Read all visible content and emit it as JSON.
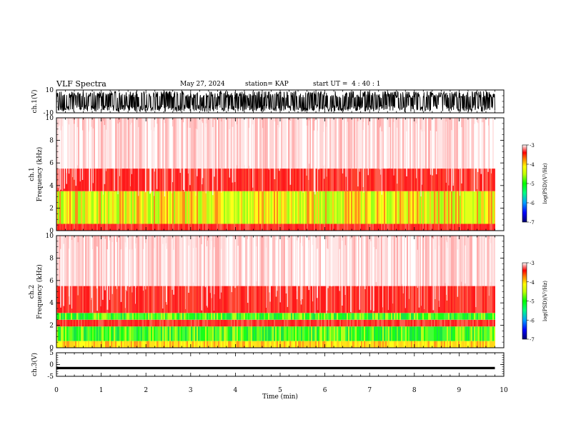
{
  "header": {
    "title": "VLF Spectra",
    "date": "May 27, 2024",
    "station": "station= KAP",
    "start": "start UT =  4 : 40 : 1"
  },
  "chart_data": [
    {
      "type": "line",
      "panel": "ch1-waveform",
      "ylabel": "ch.1(V)",
      "ylim": [
        -10,
        10
      ],
      "yticks": [
        "10",
        "-10"
      ],
      "description_series": "dense noisy waveform spanning roughly -9 to 9 V",
      "x_range_min": [
        0,
        9.8
      ]
    },
    {
      "type": "heatmap",
      "panel": "ch1-spectrogram",
      "ylabel": "ch.1\nFrequency (kHz)",
      "ylim": [
        0,
        10
      ],
      "yticks": [
        "0",
        "2",
        "4",
        "6",
        "8",
        "10"
      ],
      "bands": [
        {
          "from_khz": 0,
          "to_khz": 0.6,
          "level": "red"
        },
        {
          "from_khz": 0.6,
          "to_khz": 3.5,
          "level": "yellow-green"
        },
        {
          "from_khz": 3.5,
          "to_khz": 5.5,
          "level": "red"
        },
        {
          "from_khz": 5.5,
          "to_khz": 10,
          "level": "light-red"
        }
      ],
      "colorbar": {
        "label": "log(PSD)(V²/Hz)",
        "range": [
          -7,
          -3
        ],
        "ticks": [
          "-3",
          "-4",
          "-5",
          "-6",
          "-7"
        ]
      }
    },
    {
      "type": "heatmap",
      "panel": "ch2-spectrogram",
      "ylabel": "ch.2\nFrequency (kHz)",
      "ylim": [
        0,
        10
      ],
      "yticks": [
        "0",
        "2",
        "4",
        "6",
        "8",
        "10"
      ],
      "bands": [
        {
          "from_khz": 0,
          "to_khz": 0.6,
          "level": "yellow"
        },
        {
          "from_khz": 0.6,
          "to_khz": 1.9,
          "level": "green"
        },
        {
          "from_khz": 1.9,
          "to_khz": 2.5,
          "level": "red"
        },
        {
          "from_khz": 2.5,
          "to_khz": 3.1,
          "level": "green"
        },
        {
          "from_khz": 3.1,
          "to_khz": 5.5,
          "level": "red"
        },
        {
          "from_khz": 5.5,
          "to_khz": 10,
          "level": "light-red"
        }
      ],
      "colorbar": {
        "label": "log(PSD)(V²/Hz)",
        "range": [
          -7,
          -3
        ],
        "ticks": [
          "-3",
          "-4",
          "-5",
          "-6",
          "-7"
        ]
      }
    },
    {
      "type": "line",
      "panel": "ch3-waveform",
      "ylabel": "ch.3(V)",
      "ylim": [
        -5,
        5
      ],
      "yticks": [
        "5",
        "0",
        "-5"
      ],
      "level_v": [
        -1,
        -2
      ],
      "x_range_min": [
        0,
        9.8
      ]
    }
  ],
  "xaxis": {
    "label": "Time (min)",
    "range": [
      0,
      10
    ],
    "ticks": [
      "0",
      "1",
      "2",
      "3",
      "4",
      "5",
      "6",
      "7",
      "8",
      "9",
      "10"
    ]
  },
  "colors": {
    "low": "#0000a0",
    "mid": "#00e000",
    "yellow": "#ffff00",
    "high": "#ff0000",
    "background": "#ffffff"
  }
}
